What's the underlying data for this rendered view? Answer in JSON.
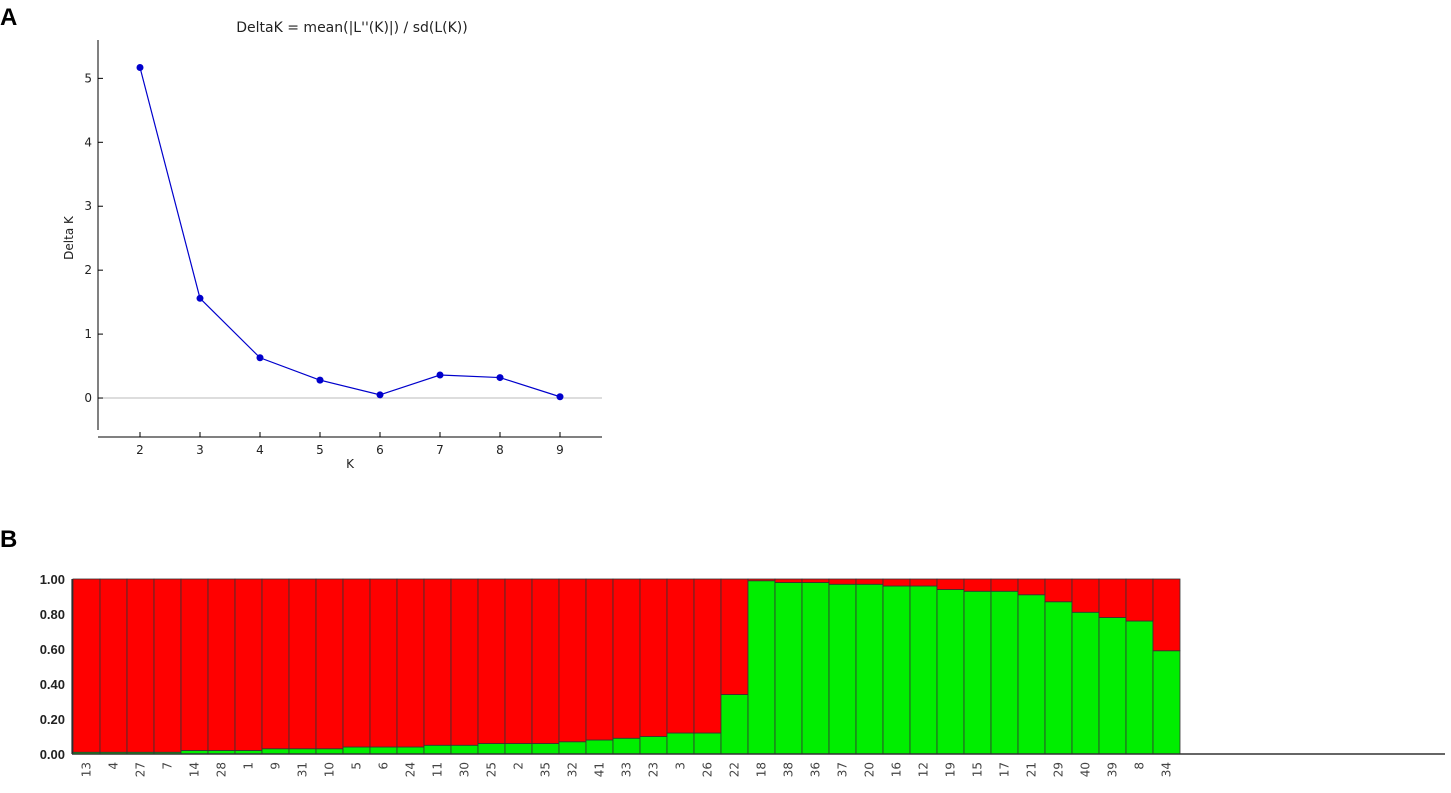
{
  "panels": {
    "a_label": "A",
    "b_label": "B"
  },
  "chart_data": [
    {
      "type": "line",
      "title": "DeltaK = mean(|L''(K)|) / sd(L(K))",
      "xlabel": "K",
      "ylabel": "Delta K",
      "x": [
        2,
        3,
        4,
        5,
        6,
        7,
        8,
        9
      ],
      "y": [
        5.17,
        1.56,
        0.63,
        0.28,
        0.05,
        0.36,
        0.32,
        0.02
      ],
      "xlim": [
        1.3,
        9.7
      ],
      "ylim": [
        -0.5,
        5.6
      ],
      "xticks": [
        "2",
        "3",
        "4",
        "5",
        "6",
        "7",
        "8",
        "9"
      ],
      "yticks": [
        "0",
        "1",
        "2",
        "3",
        "4",
        "5"
      ],
      "zero_line": true,
      "color": "#0000cc",
      "grid": false
    },
    {
      "type": "bar",
      "stacked": true,
      "categories": [
        "13",
        "4",
        "27",
        "7",
        "14",
        "28",
        "1",
        "9",
        "31",
        "10",
        "5",
        "6",
        "24",
        "11",
        "30",
        "25",
        "2",
        "35",
        "32",
        "41",
        "33",
        "23",
        "3",
        "26",
        "22",
        "18",
        "38",
        "36",
        "37",
        "20",
        "16",
        "12",
        "19",
        "15",
        "17",
        "21",
        "29",
        "40",
        "39",
        "8",
        "34"
      ],
      "series": [
        {
          "color": "#00ee00",
          "values": [
            0.01,
            0.01,
            0.01,
            0.01,
            0.02,
            0.02,
            0.02,
            0.03,
            0.03,
            0.03,
            0.04,
            0.04,
            0.04,
            0.05,
            0.05,
            0.06,
            0.06,
            0.06,
            0.07,
            0.08,
            0.09,
            0.1,
            0.12,
            0.12,
            0.34,
            0.99,
            0.98,
            0.98,
            0.97,
            0.97,
            0.96,
            0.96,
            0.94,
            0.93,
            0.93,
            0.91,
            0.87,
            0.81,
            0.78,
            0.76,
            0.59
          ]
        },
        {
          "color": "#ff0000",
          "values": [
            0.99,
            0.99,
            0.99,
            0.99,
            0.98,
            0.98,
            0.98,
            0.97,
            0.97,
            0.97,
            0.96,
            0.96,
            0.96,
            0.95,
            0.95,
            0.94,
            0.94,
            0.94,
            0.93,
            0.92,
            0.91,
            0.9,
            0.88,
            0.88,
            0.66,
            0.01,
            0.02,
            0.02,
            0.03,
            0.03,
            0.04,
            0.04,
            0.06,
            0.07,
            0.07,
            0.09,
            0.13,
            0.19,
            0.22,
            0.24,
            0.41
          ]
        }
      ],
      "yticks": [
        "0.00",
        "0.20",
        "0.40",
        "0.60",
        "0.80",
        "1.00"
      ],
      "ylim": [
        0,
        1
      ]
    }
  ]
}
